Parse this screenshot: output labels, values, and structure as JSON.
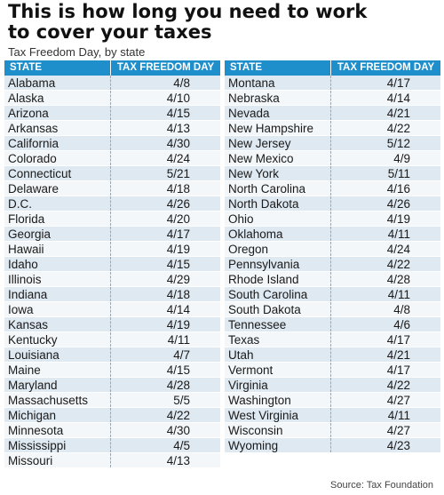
{
  "title_line1": "This is how long you need to work",
  "title_line2": "to cover your taxes",
  "subtitle": "Tax Freedom Day, by state",
  "source": "Source: Tax Foundation",
  "header": {
    "state": "STATE",
    "date": "TAX FREEDOM DAY"
  },
  "chart_data": {
    "type": "table",
    "title": "This is how long you need to work to cover your taxes",
    "subtitle": "Tax Freedom Day, by state",
    "columns": [
      "STATE",
      "TAX FREEDOM DAY"
    ],
    "left": [
      [
        "Alabama",
        "4/8"
      ],
      [
        "Alaska",
        "4/10"
      ],
      [
        "Arizona",
        "4/15"
      ],
      [
        "Arkansas",
        "4/13"
      ],
      [
        "California",
        "4/30"
      ],
      [
        "Colorado",
        "4/24"
      ],
      [
        "Connecticut",
        "5/21"
      ],
      [
        "Delaware",
        "4/18"
      ],
      [
        "D.C.",
        "4/26"
      ],
      [
        "Florida",
        "4/20"
      ],
      [
        "Georgia",
        "4/17"
      ],
      [
        "Hawaii",
        "4/19"
      ],
      [
        "Idaho",
        "4/15"
      ],
      [
        "Illinois",
        "4/29"
      ],
      [
        "Indiana",
        "4/18"
      ],
      [
        "Iowa",
        "4/14"
      ],
      [
        "Kansas",
        "4/19"
      ],
      [
        "Kentucky",
        "4/11"
      ],
      [
        "Louisiana",
        "4/7"
      ],
      [
        "Maine",
        "4/15"
      ],
      [
        "Maryland",
        "4/28"
      ],
      [
        "Massachusetts",
        "5/5"
      ],
      [
        "Michigan",
        "4/22"
      ],
      [
        "Minnesota",
        "4/30"
      ],
      [
        "Mississippi",
        "4/5"
      ],
      [
        "Missouri",
        "4/13"
      ]
    ],
    "right": [
      [
        "Montana",
        "4/17"
      ],
      [
        "Nebraska",
        "4/14"
      ],
      [
        "Nevada",
        "4/21"
      ],
      [
        "New Hampshire",
        "4/22"
      ],
      [
        "New Jersey",
        "5/12"
      ],
      [
        "New Mexico",
        "4/9"
      ],
      [
        "New York",
        "5/11"
      ],
      [
        "North Carolina",
        "4/16"
      ],
      [
        "North Dakota",
        "4/26"
      ],
      [
        "Ohio",
        "4/19"
      ],
      [
        "Oklahoma",
        "4/11"
      ],
      [
        "Oregon",
        "4/24"
      ],
      [
        "Pennsylvania",
        "4/22"
      ],
      [
        "Rhode Island",
        "4/28"
      ],
      [
        "South Carolina",
        "4/11"
      ],
      [
        "South Dakota",
        "4/8"
      ],
      [
        "Tennessee",
        "4/6"
      ],
      [
        "Texas",
        "4/17"
      ],
      [
        "Utah",
        "4/21"
      ],
      [
        "Vermont",
        "4/17"
      ],
      [
        "Virginia",
        "4/22"
      ],
      [
        "Washington",
        "4/27"
      ],
      [
        "West Virginia",
        "4/11"
      ],
      [
        "Wisconsin",
        "4/27"
      ],
      [
        "Wyoming",
        "4/23"
      ]
    ]
  }
}
